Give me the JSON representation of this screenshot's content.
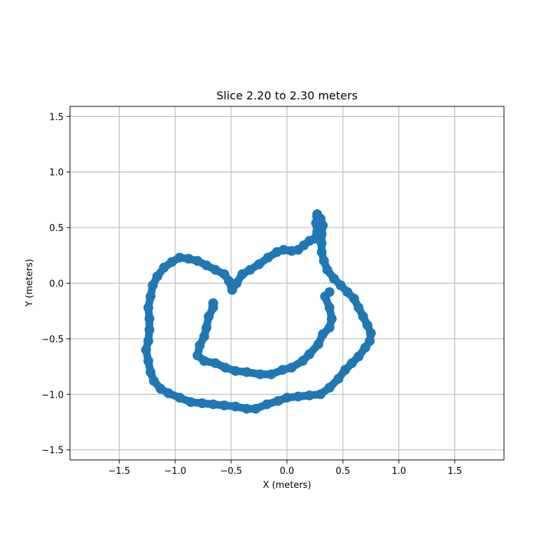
{
  "chart_data": {
    "type": "scatter",
    "title": "Slice 2.20 to 2.30 meters",
    "xlabel": "X (meters)",
    "ylabel": "Y (meters)",
    "xlim": [
      -1.94,
      1.94
    ],
    "ylim": [
      -1.59,
      1.59
    ],
    "xticks": [
      -1.5,
      -1.0,
      -0.5,
      0.0,
      0.5,
      1.0,
      1.5
    ],
    "xtick_labels": [
      "−1.5",
      "−1.0",
      "−0.5",
      "0.0",
      "0.5",
      "1.0",
      "1.5"
    ],
    "yticks": [
      -1.5,
      -1.0,
      -0.5,
      0.0,
      0.5,
      1.0,
      1.5
    ],
    "ytick_labels": [
      "−1.5",
      "−1.0",
      "−0.5",
      "0.0",
      "0.5",
      "1.0",
      "1.5"
    ],
    "grid": true,
    "color": "#1f77b4",
    "series": [
      {
        "points": [
          [
            0.27,
            0.62
          ],
          [
            0.3,
            0.58
          ],
          [
            0.32,
            0.52
          ],
          [
            0.31,
            0.44
          ],
          [
            0.31,
            0.36
          ],
          [
            0.31,
            0.28
          ],
          [
            0.33,
            0.2
          ],
          [
            0.36,
            0.12
          ],
          [
            0.42,
            0.04
          ],
          [
            0.48,
            -0.02
          ],
          [
            0.54,
            -0.08
          ],
          [
            0.6,
            -0.14
          ],
          [
            0.64,
            -0.22
          ],
          [
            0.68,
            -0.3
          ],
          [
            0.72,
            -0.38
          ],
          [
            0.75,
            -0.45
          ],
          [
            0.74,
            -0.52
          ],
          [
            0.7,
            -0.58
          ],
          [
            0.64,
            -0.66
          ],
          [
            0.58,
            -0.72
          ],
          [
            0.52,
            -0.78
          ],
          [
            0.46,
            -0.86
          ],
          [
            0.38,
            -0.94
          ],
          [
            0.3,
            -1.0
          ],
          [
            0.2,
            -1.01
          ],
          [
            0.1,
            -1.02
          ],
          [
            0.0,
            -1.03
          ],
          [
            -0.08,
            -1.06
          ],
          [
            -0.18,
            -1.09
          ],
          [
            -0.28,
            -1.13
          ],
          [
            -0.36,
            -1.13
          ],
          [
            -0.46,
            -1.11
          ],
          [
            -0.56,
            -1.1
          ],
          [
            -0.66,
            -1.09
          ],
          [
            -0.76,
            -1.08
          ],
          [
            -0.86,
            -1.07
          ],
          [
            -0.96,
            -1.03
          ],
          [
            -1.06,
            -0.99
          ],
          [
            -1.13,
            -0.95
          ],
          [
            -1.19,
            -0.88
          ],
          [
            -1.22,
            -0.8
          ],
          [
            -1.24,
            -0.7
          ],
          [
            -1.26,
            -0.6
          ],
          [
            -1.24,
            -0.52
          ],
          [
            -1.23,
            -0.42
          ],
          [
            -1.23,
            -0.32
          ],
          [
            -1.24,
            -0.22
          ],
          [
            -1.22,
            -0.12
          ],
          [
            -1.2,
            -0.02
          ],
          [
            -1.16,
            0.06
          ],
          [
            -1.1,
            0.14
          ],
          [
            -1.03,
            0.19
          ],
          [
            -0.96,
            0.23
          ],
          [
            -0.88,
            0.22
          ],
          [
            -0.8,
            0.2
          ],
          [
            -0.72,
            0.16
          ],
          [
            -0.64,
            0.12
          ],
          [
            -0.56,
            0.08
          ],
          [
            -0.52,
            0.02
          ],
          [
            -0.49,
            -0.06
          ],
          [
            -0.45,
            0.0
          ],
          [
            -0.4,
            0.08
          ],
          [
            -0.33,
            0.12
          ],
          [
            -0.25,
            0.17
          ],
          [
            -0.17,
            0.23
          ],
          [
            -0.09,
            0.28
          ],
          [
            -0.03,
            0.3
          ],
          [
            0.04,
            0.29
          ],
          [
            0.1,
            0.3
          ],
          [
            0.15,
            0.34
          ],
          [
            0.2,
            0.38
          ],
          [
            0.25,
            0.4
          ],
          [
            0.27,
            0.46
          ],
          [
            0.26,
            0.54
          ],
          [
            0.27,
            0.6
          ],
          [
            0.38,
            -0.08
          ],
          [
            0.34,
            -0.12
          ],
          [
            0.38,
            -0.22
          ],
          [
            0.4,
            -0.32
          ],
          [
            0.38,
            -0.4
          ],
          [
            0.32,
            -0.46
          ],
          [
            0.28,
            -0.55
          ],
          [
            0.2,
            -0.64
          ],
          [
            0.14,
            -0.7
          ],
          [
            0.04,
            -0.76
          ],
          [
            -0.04,
            -0.78
          ],
          [
            -0.14,
            -0.82
          ],
          [
            -0.24,
            -0.82
          ],
          [
            -0.36,
            -0.8
          ],
          [
            -0.46,
            -0.79
          ],
          [
            -0.55,
            -0.76
          ],
          [
            -0.64,
            -0.72
          ],
          [
            -0.74,
            -0.7
          ],
          [
            -0.8,
            -0.65
          ],
          [
            -0.78,
            -0.56
          ],
          [
            -0.74,
            -0.48
          ],
          [
            -0.72,
            -0.4
          ],
          [
            -0.7,
            -0.3
          ],
          [
            -0.66,
            -0.22
          ],
          [
            -0.66,
            -0.18
          ]
        ]
      }
    ]
  }
}
